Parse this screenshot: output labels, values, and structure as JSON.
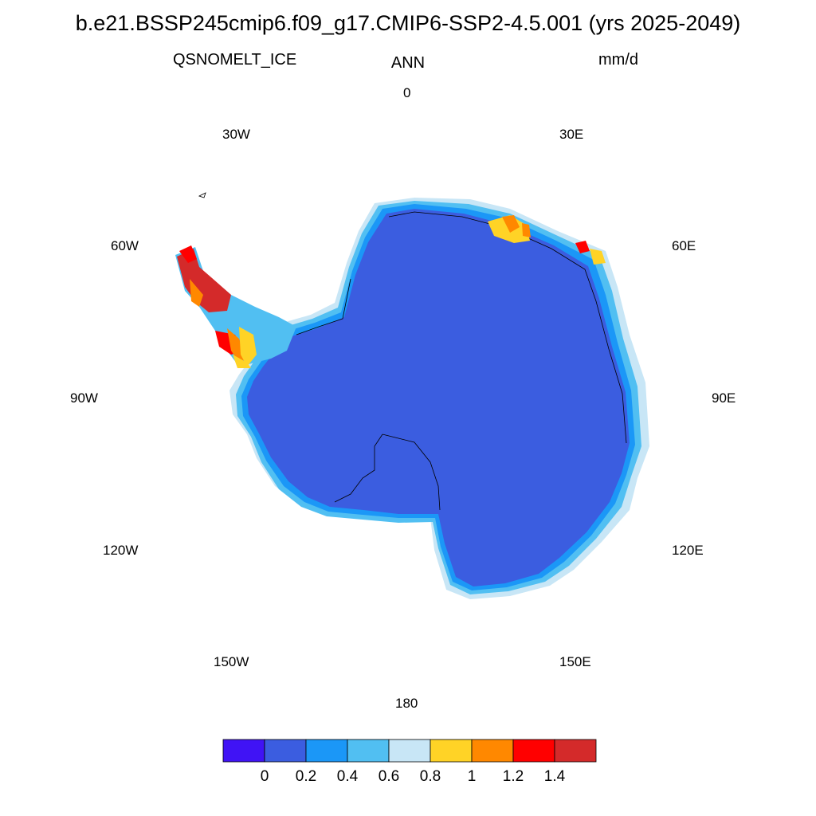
{
  "title": "b.e21.BSSP245cmip6.f09_g17.CMIP6-SSP2-4.5.001 (yrs 2025-2049)",
  "left_string": "QSNOMELT_ICE",
  "center_string": "ANN",
  "right_string": "mm/d",
  "longitude_labels": {
    "lon_0": "0",
    "lon_30e": "30E",
    "lon_60e": "60E",
    "lon_90e": "90E",
    "lon_120e": "120E",
    "lon_150e": "150E",
    "lon_180": "180",
    "lon_150w": "150W",
    "lon_120w": "120W",
    "lon_90w": "90W",
    "lon_60w": "60W",
    "lon_30w": "30W"
  },
  "colorbar": {
    "colors": [
      "#4013f5",
      "#3b5de0",
      "#1b97f7",
      "#51bff2",
      "#c8e6f6",
      "#ffd326",
      "#ff8800",
      "#ff0000",
      "#d42a2a"
    ],
    "labels": [
      "0",
      "0.2",
      "0.4",
      "0.6",
      "0.8",
      "1",
      "1.2",
      "1.4"
    ]
  },
  "colors": {
    "ice_sheet": "#3b5de0",
    "coastal_0_4": "#1b97f7",
    "coastal_0_6": "#51bff2",
    "coastal_0_8": "#c8e6f6",
    "peninsula_1": "#ffd326",
    "peninsula_1_2": "#ff8800",
    "peninsula_1_4": "#ff0000",
    "peninsula_max": "#d42a2a"
  }
}
